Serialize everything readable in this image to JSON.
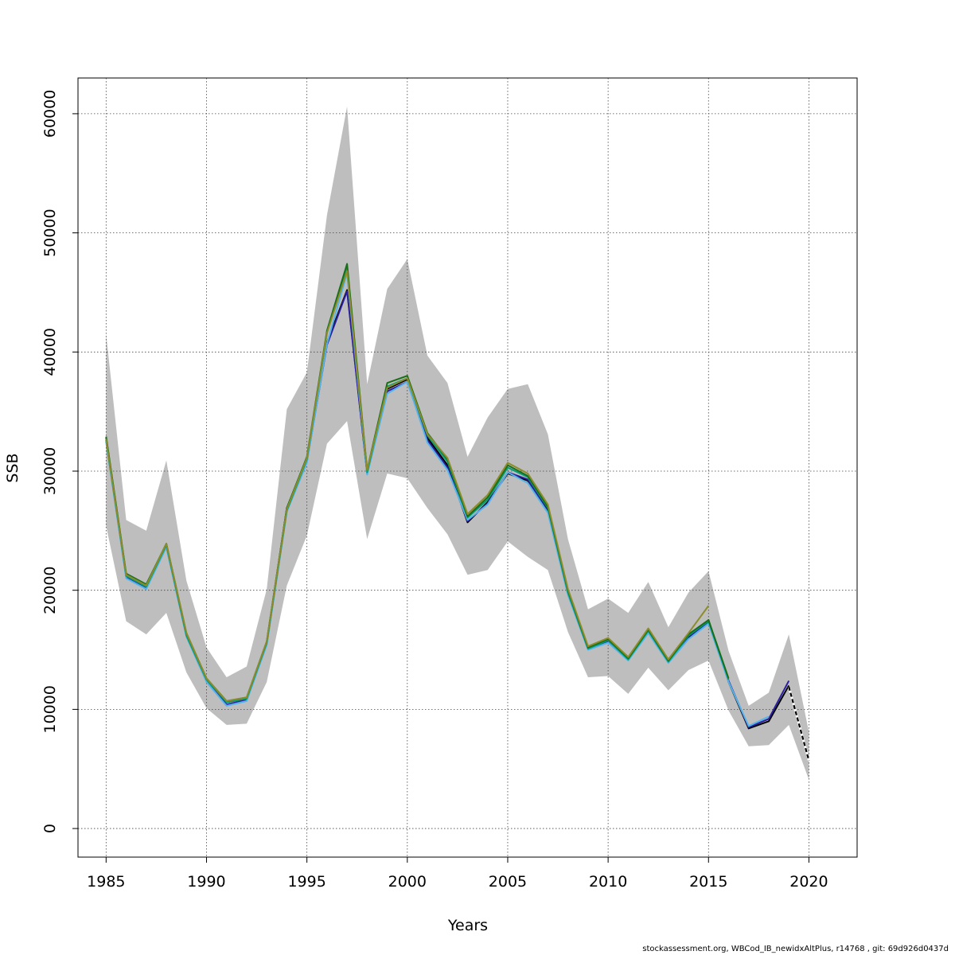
{
  "chart_data": {
    "type": "line",
    "xlabel": "Years",
    "ylabel": "SSB",
    "xlim": [
      1983.6,
      2022.4
    ],
    "ylim": [
      -2400,
      63000
    ],
    "x_ticks": [
      1985,
      1990,
      1995,
      2000,
      2005,
      2010,
      2015,
      2020
    ],
    "y_ticks": [
      0,
      10000,
      20000,
      30000,
      40000,
      50000,
      60000
    ],
    "grid": true,
    "band_color": "#bebebe",
    "confidence_band": {
      "x": [
        1985,
        1986,
        1987,
        1988,
        1989,
        1990,
        1991,
        1992,
        1993,
        1994,
        1995,
        1996,
        1997,
        1998,
        1999,
        2000,
        2001,
        2002,
        2003,
        2004,
        2005,
        2006,
        2007,
        2008,
        2009,
        2010,
        2011,
        2012,
        2013,
        2014,
        2015,
        2016,
        2017,
        2018,
        2019,
        2020
      ],
      "lower": [
        25400,
        17400,
        16300,
        18100,
        13100,
        10100,
        8700,
        8800,
        12300,
        20400,
        24600,
        32300,
        34200,
        24300,
        29800,
        29400,
        26900,
        24700,
        21300,
        21700,
        24100,
        22800,
        21700,
        16500,
        12700,
        12800,
        11300,
        13500,
        11600,
        13300,
        14100,
        9900,
        6900,
        7000,
        8700,
        4100
      ],
      "upper": [
        41500,
        25900,
        25000,
        30900,
        20800,
        15200,
        12700,
        13600,
        20100,
        35200,
        38300,
        51500,
        60600,
        37300,
        45300,
        47800,
        39700,
        37400,
        31200,
        34500,
        36900,
        37300,
        33100,
        24300,
        18400,
        19300,
        18100,
        20700,
        16900,
        19800,
        21600,
        14900,
        10300,
        11400,
        16300,
        8100
      ]
    },
    "series": [
      {
        "color": "#000000",
        "dashed": false,
        "x": [
          1985,
          1986,
          1987,
          1988,
          1989,
          1990,
          1991,
          1992,
          1993,
          1994,
          1995,
          1996,
          1997,
          1998,
          1999,
          2000,
          2001,
          2002,
          2003,
          2004,
          2005,
          2006,
          2007,
          2008,
          2009,
          2010,
          2011,
          2012,
          2013,
          2014,
          2015,
          2016,
          2017,
          2018,
          2019
        ],
        "values": [
          32800,
          21300,
          20400,
          23900,
          16300,
          12500,
          10600,
          10900,
          15600,
          26900,
          31100,
          40800,
          45200,
          29900,
          36900,
          37700,
          32800,
          30500,
          25700,
          27400,
          29800,
          29200,
          26700,
          19900,
          15200,
          15800,
          14300,
          16600,
          14000,
          16000,
          17500,
          12300,
          8400,
          9000,
          12000
        ]
      },
      {
        "color": "#000000",
        "dashed": true,
        "x": [
          2019,
          2020
        ],
        "values": [
          11900,
          5700
        ]
      },
      {
        "color": "#2b1fa0",
        "dashed": false,
        "x": [
          1985,
          1986,
          1987,
          1988,
          1989,
          1990,
          1991,
          1992,
          1993,
          1994,
          1995,
          1996,
          1997,
          1998,
          1999,
          2000,
          2001,
          2002,
          2003,
          2004,
          2005,
          2006,
          2007,
          2008,
          2009,
          2010,
          2011,
          2012,
          2013,
          2014,
          2015,
          2016,
          2017,
          2018,
          2019
        ],
        "values": [
          32600,
          21100,
          20200,
          23700,
          16200,
          12400,
          10400,
          10800,
          15500,
          26700,
          30800,
          40600,
          45100,
          29800,
          36700,
          37500,
          32600,
          30300,
          25800,
          27300,
          29900,
          29300,
          26600,
          19800,
          15100,
          15700,
          14200,
          16500,
          14000,
          16100,
          17300,
          12400,
          8500,
          9200,
          12400
        ]
      },
      {
        "color": "#56b4e9",
        "dashed": false,
        "x": [
          1985,
          1986,
          1987,
          1988,
          1989,
          1990,
          1991,
          1992,
          1993,
          1994,
          1995,
          1996,
          1997,
          1998,
          1999,
          2000,
          2001,
          2002,
          2003,
          2004,
          2005,
          2006,
          2007,
          2008,
          2009,
          2010,
          2011,
          2012,
          2013,
          2014,
          2015,
          2016,
          2017,
          2018
        ],
        "values": [
          32500,
          21000,
          20100,
          23600,
          16100,
          12300,
          10300,
          10700,
          15400,
          26600,
          30700,
          40700,
          46600,
          29700,
          36500,
          37500,
          32400,
          30100,
          25900,
          27200,
          29900,
          29000,
          26500,
          19600,
          15000,
          15600,
          14100,
          16400,
          13900,
          15900,
          17200,
          12300,
          8600,
          9400
        ]
      },
      {
        "color": "#009e73",
        "dashed": false,
        "x": [
          1985,
          1986,
          1987,
          1988,
          1989,
          1990,
          1991,
          1992,
          1993,
          1994,
          1995,
          1996,
          1997,
          1998,
          1999,
          2000,
          2001,
          2002,
          2003,
          2004,
          2005,
          2006,
          2007,
          2008,
          2009,
          2010,
          2011,
          2012,
          2013,
          2014,
          2015,
          2016
        ],
        "values": [
          32600,
          21200,
          20300,
          23800,
          16200,
          12500,
          10600,
          10900,
          15600,
          26700,
          31000,
          41600,
          47200,
          29900,
          37100,
          37800,
          33000,
          30800,
          26100,
          27600,
          30300,
          29500,
          26900,
          19800,
          15100,
          15800,
          14200,
          16600,
          14000,
          16200,
          17400,
          12500
        ]
      },
      {
        "color": "#1a6e1a",
        "dashed": false,
        "x": [
          1985,
          1986,
          1987,
          1988,
          1989,
          1990,
          1991,
          1992,
          1993,
          1994,
          1995,
          1996,
          1997,
          1998,
          1999,
          2000,
          2001,
          2002,
          2003,
          2004,
          2005,
          2006,
          2007,
          2008,
          2009,
          2010,
          2011,
          2012,
          2013,
          2014,
          2015,
          2016
        ],
        "values": [
          32900,
          21400,
          20500,
          23900,
          16400,
          12600,
          10700,
          11000,
          15700,
          26900,
          31200,
          41800,
          47400,
          30100,
          37400,
          38000,
          33200,
          31000,
          26200,
          27800,
          30500,
          29600,
          27000,
          20000,
          15200,
          15900,
          14300,
          16700,
          14100,
          16300,
          17500,
          12600
        ]
      },
      {
        "color": "#8c8c2a",
        "dashed": false,
        "x": [
          1985,
          1986,
          1987,
          1988,
          1989,
          1990,
          1991,
          1992,
          1993,
          1994,
          1995,
          1996,
          1997,
          1998,
          1999,
          2000,
          2001,
          2002,
          2003,
          2004,
          2005,
          2006,
          2007,
          2008,
          2009,
          2010,
          2011,
          2012,
          2013,
          2014,
          2015
        ],
        "values": [
          32700,
          21300,
          20400,
          23900,
          16400,
          12600,
          10700,
          11000,
          15700,
          26800,
          31100,
          41600,
          46800,
          30100,
          37000,
          37800,
          33100,
          31100,
          26400,
          28000,
          30700,
          29800,
          27200,
          20100,
          15300,
          16000,
          14400,
          16800,
          14200,
          16400,
          18700
        ]
      }
    ]
  },
  "footer": "stockassessment.org, WBCod_IB_newidxAltPlus, r14768 , git: 69d926d0437d"
}
